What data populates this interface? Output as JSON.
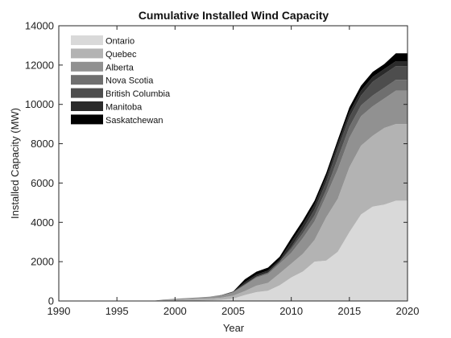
{
  "chart_data": {
    "type": "area",
    "stacked": true,
    "title": "Cumulative Installed Wind Capacity",
    "xlabel": "Year",
    "ylabel": "Installed Capacity (MW)",
    "xlim": [
      1990,
      2020
    ],
    "ylim": [
      0,
      14000
    ],
    "x_ticks": [
      1990,
      1995,
      2000,
      2005,
      2010,
      2015,
      2020
    ],
    "y_ticks": [
      0,
      2000,
      4000,
      6000,
      8000,
      10000,
      12000,
      14000
    ],
    "grid": false,
    "legend_position": "top-left",
    "x": [
      1990,
      1991,
      1992,
      1993,
      1994,
      1995,
      1996,
      1997,
      1998,
      1999,
      2000,
      2001,
      2002,
      2003,
      2004,
      2005,
      2006,
      2007,
      2008,
      2009,
      2010,
      2011,
      2012,
      2013,
      2014,
      2015,
      2016,
      2017,
      2018,
      2019,
      2020
    ],
    "series": [
      {
        "name": "Ontario",
        "color": "#d9d9d9",
        "values": [
          0,
          0,
          0,
          0,
          0,
          0,
          0,
          0,
          0,
          0,
          0,
          10,
          20,
          30,
          60,
          120,
          300,
          450,
          520,
          800,
          1200,
          1500,
          2000,
          2050,
          2500,
          3500,
          4400,
          4800,
          4900,
          5100,
          5100
        ]
      },
      {
        "name": "Quebec",
        "color": "#b3b3b3",
        "values": [
          0,
          0,
          0,
          0,
          0,
          0,
          0,
          0,
          0,
          40,
          60,
          80,
          90,
          100,
          110,
          150,
          200,
          330,
          400,
          600,
          700,
          900,
          1100,
          2200,
          2700,
          3300,
          3500,
          3600,
          3900,
          3900,
          3900
        ]
      },
      {
        "name": "Alberta",
        "color": "#919191",
        "values": [
          0,
          0,
          0,
          0,
          0,
          0,
          0,
          0,
          0,
          30,
          50,
          60,
          70,
          90,
          100,
          160,
          300,
          400,
          450,
          500,
          550,
          800,
          950,
          1100,
          1500,
          1500,
          1500,
          1500,
          1500,
          1700,
          1700
        ]
      },
      {
        "name": "Nova Scotia",
        "color": "#6f6f6f",
        "values": [
          0,
          0,
          0,
          0,
          0,
          0,
          0,
          0,
          0,
          0,
          0,
          0,
          0,
          0,
          20,
          30,
          50,
          60,
          80,
          100,
          200,
          250,
          300,
          300,
          550,
          550,
          550,
          550,
          550,
          550,
          550
        ]
      },
      {
        "name": "British Columbia",
        "color": "#4d4d4d",
        "values": [
          0,
          0,
          0,
          0,
          0,
          0,
          0,
          0,
          0,
          0,
          0,
          0,
          0,
          0,
          0,
          0,
          0,
          0,
          0,
          0,
          100,
          200,
          300,
          400,
          500,
          500,
          500,
          700,
          700,
          700,
          700
        ]
      },
      {
        "name": "Manitoba",
        "color": "#2b2b2b",
        "values": [
          0,
          0,
          0,
          0,
          0,
          0,
          0,
          0,
          0,
          0,
          0,
          0,
          0,
          0,
          0,
          0,
          100,
          100,
          100,
          100,
          250,
          250,
          250,
          250,
          250,
          250,
          250,
          250,
          250,
          250,
          250
        ]
      },
      {
        "name": "Saskatchewan",
        "color": "#000000",
        "values": [
          0,
          0,
          0,
          0,
          0,
          0,
          0,
          0,
          0,
          0,
          0,
          0,
          0,
          0,
          10,
          20,
          150,
          150,
          150,
          150,
          200,
          200,
          200,
          200,
          200,
          250,
          250,
          250,
          250,
          400,
          400
        ]
      }
    ]
  }
}
